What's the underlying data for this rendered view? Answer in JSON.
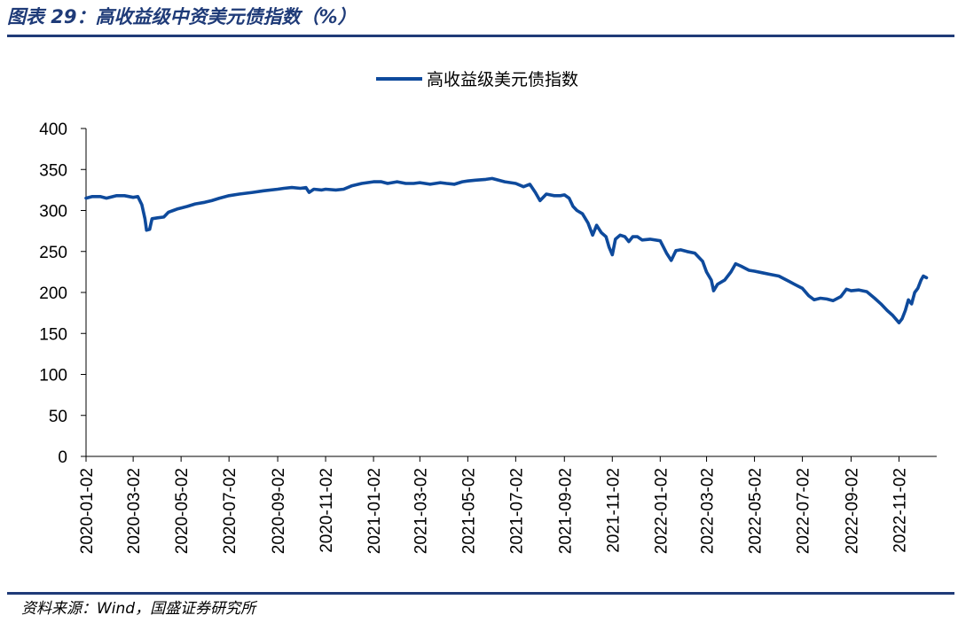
{
  "header": {
    "title": "图表 29：高收益级中资美元债指数（%）"
  },
  "footer": {
    "source": "资料来源：Wind，国盛证券研究所"
  },
  "colors": {
    "accent": "#1f3b78",
    "series": "#0e4a9c"
  },
  "chart_data": {
    "type": "line",
    "title": "",
    "xlabel": "",
    "ylabel": "",
    "ylim": [
      0,
      400
    ],
    "yticks": [
      0,
      50,
      100,
      150,
      200,
      250,
      300,
      350,
      400
    ],
    "xlim": [
      "2020-01-02",
      "2022-12-20"
    ],
    "xticks": [
      "2020-01-02",
      "2020-03-02",
      "2020-05-02",
      "2020-07-02",
      "2020-09-02",
      "2020-11-02",
      "2021-01-02",
      "2021-03-02",
      "2021-05-02",
      "2021-07-02",
      "2021-09-02",
      "2021-11-02",
      "2022-01-02",
      "2022-03-02",
      "2022-05-02",
      "2022-07-02",
      "2022-09-02",
      "2022-11-02"
    ],
    "grid": false,
    "legend": "top-center",
    "series": [
      {
        "name": "高收益级美元债指数",
        "color": "#0e4a9c",
        "points": [
          [
            "2020-01-02",
            315
          ],
          [
            "2020-01-10",
            317
          ],
          [
            "2020-01-20",
            317
          ],
          [
            "2020-01-28",
            315
          ],
          [
            "2020-02-10",
            318
          ],
          [
            "2020-02-20",
            318
          ],
          [
            "2020-03-02",
            316
          ],
          [
            "2020-03-08",
            317
          ],
          [
            "2020-03-13",
            307
          ],
          [
            "2020-03-17",
            290
          ],
          [
            "2020-03-19",
            276
          ],
          [
            "2020-03-23",
            277
          ],
          [
            "2020-03-26",
            290
          ],
          [
            "2020-04-02",
            291
          ],
          [
            "2020-04-10",
            292
          ],
          [
            "2020-04-16",
            298
          ],
          [
            "2020-04-22",
            300
          ],
          [
            "2020-04-28",
            302
          ],
          [
            "2020-05-02",
            303
          ],
          [
            "2020-05-10",
            305
          ],
          [
            "2020-05-20",
            308
          ],
          [
            "2020-06-01",
            310
          ],
          [
            "2020-06-10",
            312
          ],
          [
            "2020-06-20",
            315
          ],
          [
            "2020-07-02",
            318
          ],
          [
            "2020-07-15",
            320
          ],
          [
            "2020-08-01",
            322
          ],
          [
            "2020-08-15",
            324
          ],
          [
            "2020-09-02",
            326
          ],
          [
            "2020-09-10",
            327
          ],
          [
            "2020-09-20",
            328
          ],
          [
            "2020-10-01",
            327
          ],
          [
            "2020-10-08",
            328
          ],
          [
            "2020-10-12",
            322
          ],
          [
            "2020-10-18",
            326
          ],
          [
            "2020-10-28",
            325
          ],
          [
            "2020-11-02",
            326
          ],
          [
            "2020-11-15",
            325
          ],
          [
            "2020-11-25",
            326
          ],
          [
            "2020-12-05",
            330
          ],
          [
            "2020-12-18",
            333
          ],
          [
            "2021-01-02",
            335
          ],
          [
            "2021-01-12",
            335
          ],
          [
            "2021-01-20",
            333
          ],
          [
            "2021-02-01",
            335
          ],
          [
            "2021-02-12",
            333
          ],
          [
            "2021-02-22",
            333
          ],
          [
            "2021-03-02",
            334
          ],
          [
            "2021-03-15",
            332
          ],
          [
            "2021-03-28",
            334
          ],
          [
            "2021-04-05",
            333
          ],
          [
            "2021-04-15",
            332
          ],
          [
            "2021-04-25",
            335
          ],
          [
            "2021-05-02",
            336
          ],
          [
            "2021-05-12",
            337
          ],
          [
            "2021-05-25",
            338
          ],
          [
            "2021-06-02",
            339
          ],
          [
            "2021-06-10",
            337
          ],
          [
            "2021-06-18",
            335
          ],
          [
            "2021-07-02",
            333
          ],
          [
            "2021-07-12",
            329
          ],
          [
            "2021-07-20",
            332
          ],
          [
            "2021-07-27",
            322
          ],
          [
            "2021-08-02",
            312
          ],
          [
            "2021-08-10",
            320
          ],
          [
            "2021-08-20",
            318
          ],
          [
            "2021-08-28",
            318
          ],
          [
            "2021-09-02",
            319
          ],
          [
            "2021-09-08",
            315
          ],
          [
            "2021-09-13",
            305
          ],
          [
            "2021-09-18",
            300
          ],
          [
            "2021-09-25",
            296
          ],
          [
            "2021-10-02",
            285
          ],
          [
            "2021-10-08",
            270
          ],
          [
            "2021-10-13",
            282
          ],
          [
            "2021-10-19",
            273
          ],
          [
            "2021-10-25",
            268
          ],
          [
            "2021-10-29",
            255
          ],
          [
            "2021-11-02",
            246
          ],
          [
            "2021-11-06",
            265
          ],
          [
            "2021-11-12",
            270
          ],
          [
            "2021-11-18",
            268
          ],
          [
            "2021-11-23",
            262
          ],
          [
            "2021-11-28",
            268
          ],
          [
            "2021-12-04",
            268
          ],
          [
            "2021-12-10",
            264
          ],
          [
            "2021-12-20",
            265
          ],
          [
            "2022-01-02",
            263
          ],
          [
            "2022-01-10",
            248
          ],
          [
            "2022-01-16",
            239
          ],
          [
            "2022-01-22",
            251
          ],
          [
            "2022-01-28",
            252
          ],
          [
            "2022-02-05",
            250
          ],
          [
            "2022-02-15",
            248
          ],
          [
            "2022-02-25",
            238
          ],
          [
            "2022-03-02",
            225
          ],
          [
            "2022-03-08",
            215
          ],
          [
            "2022-03-11",
            202
          ],
          [
            "2022-03-16",
            210
          ],
          [
            "2022-03-25",
            215
          ],
          [
            "2022-04-02",
            225
          ],
          [
            "2022-04-08",
            235
          ],
          [
            "2022-04-15",
            232
          ],
          [
            "2022-04-25",
            227
          ],
          [
            "2022-05-02",
            226
          ],
          [
            "2022-05-12",
            224
          ],
          [
            "2022-05-22",
            222
          ],
          [
            "2022-06-02",
            220
          ],
          [
            "2022-06-12",
            215
          ],
          [
            "2022-06-22",
            210
          ],
          [
            "2022-07-02",
            205
          ],
          [
            "2022-07-10",
            196
          ],
          [
            "2022-07-17",
            191
          ],
          [
            "2022-07-25",
            193
          ],
          [
            "2022-08-02",
            192
          ],
          [
            "2022-08-10",
            190
          ],
          [
            "2022-08-20",
            195
          ],
          [
            "2022-08-27",
            204
          ],
          [
            "2022-09-02",
            202
          ],
          [
            "2022-09-12",
            203
          ],
          [
            "2022-09-22",
            201
          ],
          [
            "2022-10-02",
            193
          ],
          [
            "2022-10-10",
            186
          ],
          [
            "2022-10-18",
            178
          ],
          [
            "2022-10-25",
            172
          ],
          [
            "2022-11-02",
            163
          ],
          [
            "2022-11-06",
            168
          ],
          [
            "2022-11-10",
            178
          ],
          [
            "2022-11-14",
            191
          ],
          [
            "2022-11-18",
            186
          ],
          [
            "2022-11-22",
            200
          ],
          [
            "2022-11-26",
            205
          ],
          [
            "2022-11-30",
            215
          ],
          [
            "2022-12-03",
            220
          ],
          [
            "2022-12-07",
            218
          ]
        ]
      }
    ]
  }
}
